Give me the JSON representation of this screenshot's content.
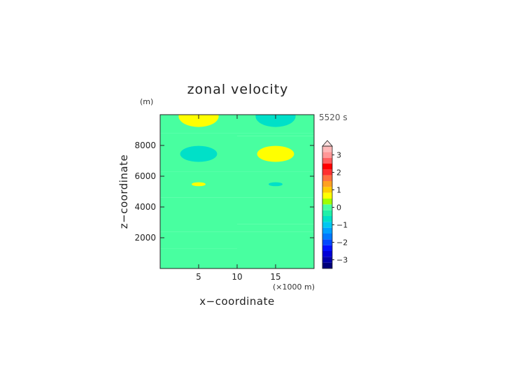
{
  "chart_data": {
    "type": "heatmap",
    "title": "zonal velocity",
    "xlabel": "x−coordinate",
    "ylabel": "z−coordinate",
    "x_unit": "(×1000 m)",
    "y_unit": "(m)",
    "time_label": "5520 s",
    "xlim": [
      0,
      20
    ],
    "ylim": [
      0,
      10000
    ],
    "xticks": [
      5,
      10,
      15
    ],
    "yticks": [
      2000,
      4000,
      6000,
      8000
    ],
    "x_tick_labels": [
      "5",
      "10",
      "15"
    ],
    "y_tick_labels": [
      "2000",
      "4000",
      "6000",
      "8000"
    ],
    "colorbar": {
      "levels": [
        -3.5,
        -3.25,
        -3,
        -2.75,
        -2.5,
        -2.25,
        -2,
        -1.75,
        -1.5,
        -1.25,
        -1,
        -0.75,
        -0.5,
        -0.25,
        0,
        0.25,
        0.5,
        0.75,
        1,
        1.25,
        1.5,
        1.75,
        2,
        2.25,
        2.5,
        2.75,
        3,
        3.25,
        3.5
      ],
      "tick_values": [
        -3,
        -2,
        -1,
        0,
        1,
        2,
        3
      ],
      "tick_labels": [
        "−3",
        "−2",
        "−1",
        "0",
        "1",
        "2",
        "3"
      ],
      "colors": [
        "#00007a",
        "#0000a8",
        "#0000d6",
        "#0010ff",
        "#0048ff",
        "#0078ff",
        "#00a0ff",
        "#00c8f0",
        "#00e0c8",
        "#20f0a8",
        "#48ffa0",
        "#a0ff00",
        "#ffff00",
        "#ffcc00",
        "#ffa020",
        "#ff7040",
        "#ff3030",
        "#ff0000",
        "#ff6060",
        "#ff9898",
        "#ffb8b8"
      ],
      "extend_max": true
    },
    "bands": [
      {
        "x": [
          0,
          10
        ],
        "z": [
          0,
          1300
        ],
        "value": 0.1
      },
      {
        "x": [
          0,
          10
        ],
        "z": [
          1300,
          2400
        ],
        "value": -0.1
      },
      {
        "x": [
          0,
          10
        ],
        "z": [
          2400,
          3000
        ],
        "value": 0.1
      },
      {
        "x": [
          0,
          10
        ],
        "z": [
          3000,
          4600
        ],
        "value": -0.1
      },
      {
        "x": [
          0,
          10
        ],
        "z": [
          4600,
          6300
        ],
        "value": 0.1
      },
      {
        "x": [
          0,
          10
        ],
        "z": [
          6300,
          8800
        ],
        "value": -0.1
      },
      {
        "x": [
          0,
          10
        ],
        "z": [
          8800,
          10000
        ],
        "value": 0.1
      },
      {
        "x": [
          10,
          20
        ],
        "z": [
          0,
          1500
        ],
        "value": 0.1
      },
      {
        "x": [
          10,
          20
        ],
        "z": [
          1500,
          2400
        ],
        "value": -0.1
      },
      {
        "x": [
          10,
          20
        ],
        "z": [
          2400,
          2900
        ],
        "value": 0.1
      },
      {
        "x": [
          10,
          20
        ],
        "z": [
          2900,
          4600
        ],
        "value": -0.1
      },
      {
        "x": [
          10,
          20
        ],
        "z": [
          4600,
          6300
        ],
        "value": 0.1
      },
      {
        "x": [
          10,
          20
        ],
        "z": [
          6300,
          8600
        ],
        "value": -0.1
      },
      {
        "x": [
          10,
          20
        ],
        "z": [
          8600,
          8800
        ],
        "value": 0.1
      },
      {
        "x": [
          10,
          20
        ],
        "z": [
          8800,
          10000
        ],
        "value": -0.1
      }
    ],
    "features": [
      {
        "x": 5,
        "z": 9900,
        "rx": 2.6,
        "rz": 700,
        "value": 0.6
      },
      {
        "x": 15,
        "z": 9900,
        "rx": 2.6,
        "rz": 700,
        "value": -0.6
      },
      {
        "x": 5,
        "z": 7450,
        "rx": 2.4,
        "rz": 520,
        "value": -0.6
      },
      {
        "x": 15,
        "z": 7450,
        "rx": 2.4,
        "rz": 520,
        "value": 0.6
      },
      {
        "x": 5,
        "z": 5480,
        "rx": 0.9,
        "rz": 130,
        "value": 0.6
      },
      {
        "x": 15,
        "z": 5480,
        "rx": 0.9,
        "rz": 130,
        "value": -0.6
      }
    ]
  }
}
